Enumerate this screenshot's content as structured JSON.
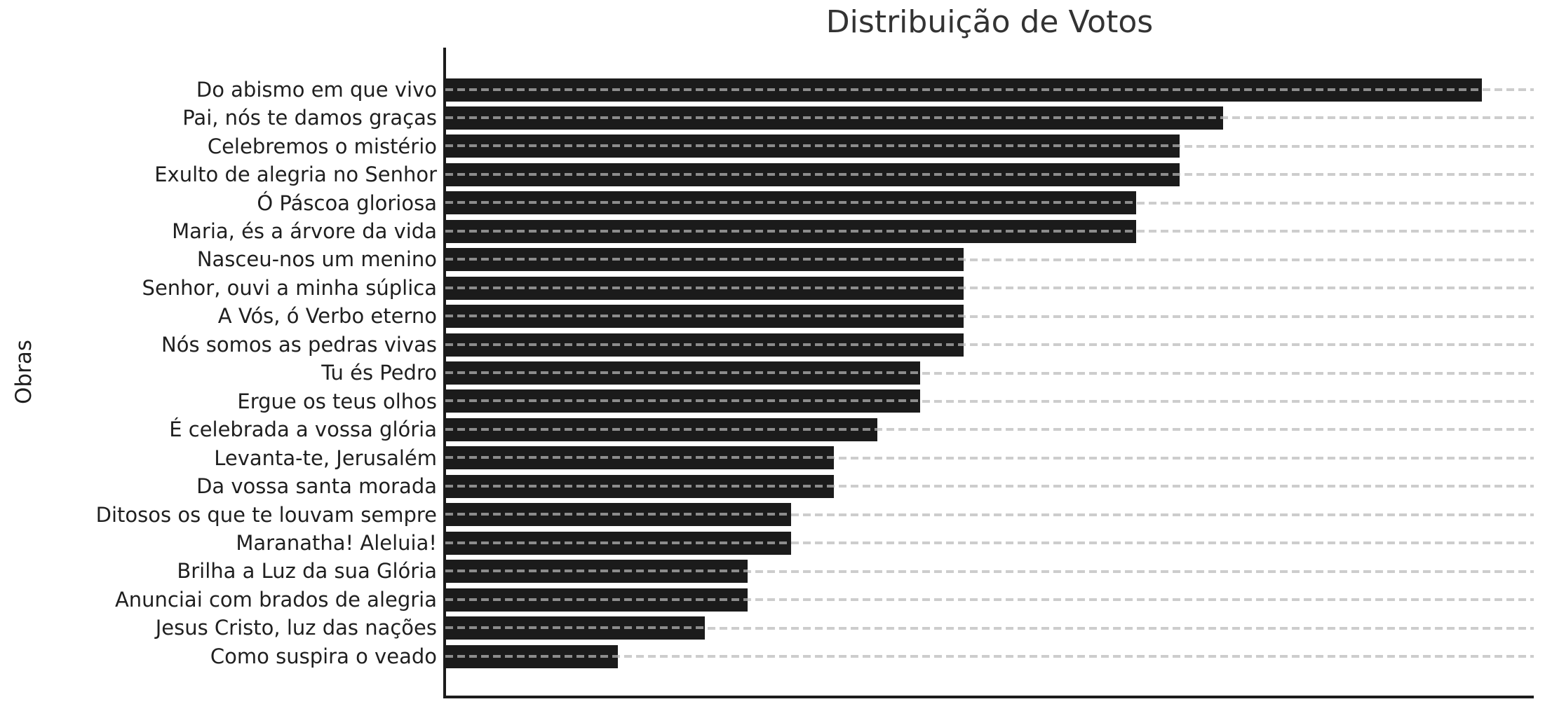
{
  "title": "Distribuição de Votos",
  "ylabel": "Obras",
  "chart_data": {
    "type": "bar",
    "orientation": "horizontal",
    "title": "Distribuição de Votos",
    "ylabel": "Obras",
    "xlabel": "",
    "categories": [
      "Do abismo em que vivo",
      "Pai, nós te damos graças",
      "Celebremos o mistério",
      "Exulto de alegria no Senhor",
      "Ó Páscoa gloriosa",
      "Maria, és a árvore da vida",
      "Nasceu-nos um menino",
      "Senhor, ouvi a minha súplica",
      "A Vós, ó Verbo eterno",
      "Nós somos as pedras vivas",
      "Tu és Pedro",
      "Ergue os teus olhos",
      "É celebrada a vossa glória",
      "Levanta-te, Jerusalém",
      "Da vossa santa morada",
      "Ditosos os que te louvam sempre",
      "Maranatha! Aleluia!",
      "Brilha a Luz da sua Glória",
      "Anunciai com brados de alegria",
      "Jesus Cristo, luz das nações",
      "Como suspira o veado"
    ],
    "values": [
      24,
      18,
      17,
      17,
      16,
      16,
      12,
      12,
      12,
      12,
      11,
      11,
      10,
      9,
      9,
      8,
      8,
      7,
      7,
      6,
      4
    ],
    "xlim": [
      0,
      25.2
    ],
    "grid": "horizontal dashed gridlines at each category, drawn over bars",
    "legend": "none",
    "colors": {
      "bar": "#1b1b1b",
      "gridline": "#cdcdcd",
      "gridline_over_bar": "#8c8c8c",
      "axis_spine": "#1b1b1b",
      "title_text": "#333333",
      "tick_text": "#1f1f1f"
    }
  }
}
